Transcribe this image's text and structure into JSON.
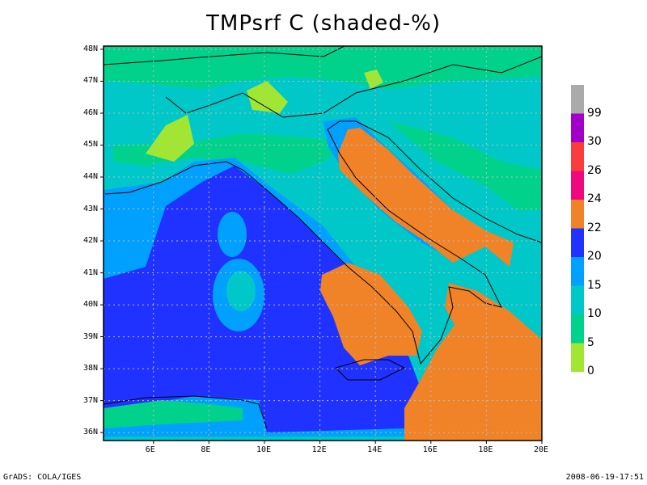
{
  "title": "TMPsrf C (shaded-%)",
  "map": {
    "lon_range": [
      4.2,
      20
    ],
    "lat_range": [
      35.75,
      48.1
    ],
    "lat_labels": [
      "48N",
      "47N",
      "46N",
      "45N",
      "44N",
      "43N",
      "42N",
      "41N",
      "40N",
      "39N",
      "38N",
      "37N",
      "36N"
    ],
    "lon_labels": [
      "6E",
      "8E",
      "10E",
      "12E",
      "14E",
      "16E",
      "18E",
      "20E"
    ],
    "grid": "dotted"
  },
  "colorbar": {
    "labels": [
      "0",
      "5",
      "10",
      "15",
      "20",
      "22",
      "24",
      "26",
      "30",
      "99"
    ],
    "colors": [
      "#a0e632",
      "#00d28c",
      "#00c8c8",
      "#00a0ff",
      "#2032ff",
      "#f08228",
      "#f0087e",
      "#fa3c3c",
      "#a000c8",
      "#aaaaaa"
    ]
  },
  "footer": {
    "left": "GrADS: COLA/IGES",
    "right": "2008-06-19-17:51"
  }
}
